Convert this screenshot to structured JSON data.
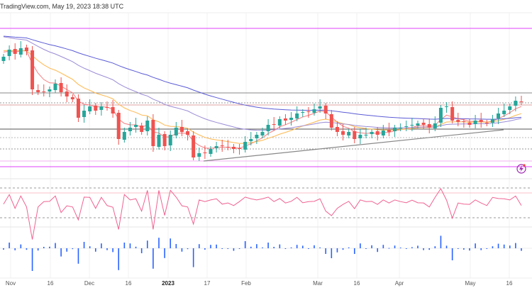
{
  "header": {
    "source_label": "TradingView.com, May 19, 2023 18:38 UTC"
  },
  "colors": {
    "up": "#26a69a",
    "down": "#ef5350",
    "ma_fast": "#f77c80",
    "ma_mid": "#ffb74d",
    "ma_slow": "#9c8cd6",
    "ma_long": "#5b5bd6",
    "level_pink": "#e040fb",
    "hist": "#2962ff",
    "rsi": "#f06292"
  },
  "chart_data": {
    "type": "candlestick",
    "title": "",
    "note": "close values in relative units (no price axis visible)",
    "closes": [
      80,
      85,
      82,
      86,
      84,
      57,
      55,
      55,
      57,
      61,
      55,
      52,
      50,
      37,
      42,
      45,
      42,
      45,
      44,
      40,
      22,
      27,
      30,
      32,
      27,
      35,
      17,
      25,
      17,
      25,
      30,
      27,
      25,
      9,
      12,
      12,
      15,
      17,
      17,
      16,
      15,
      15,
      20,
      22,
      25,
      27,
      32,
      32,
      36,
      35,
      37,
      40,
      41,
      41,
      43,
      45,
      40,
      30,
      27,
      25,
      27,
      22,
      25,
      25,
      27,
      25,
      28,
      27,
      30,
      30,
      31,
      32,
      33,
      32,
      30,
      33,
      44,
      45,
      35,
      34,
      34,
      32,
      35,
      34,
      33,
      36,
      40,
      42,
      45,
      49,
      48
    ],
    "x_ticks": [
      "Nov",
      "16",
      "Dec",
      "16",
      "2023",
      "17",
      "Feb",
      "Mar",
      "16",
      "Apr",
      "May",
      "16"
    ],
    "bold_ticks": [
      "2023"
    ],
    "panels": [
      "price",
      "rsi",
      "histogram"
    ]
  }
}
